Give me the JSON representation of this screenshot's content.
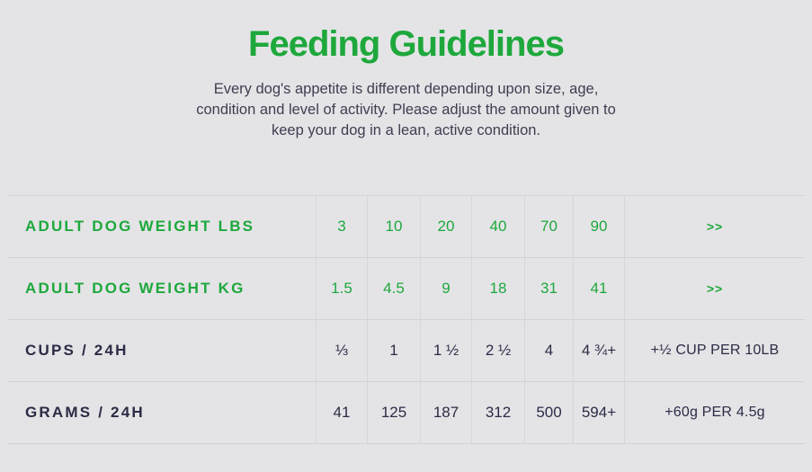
{
  "header": {
    "title": "Feeding Guidelines",
    "description": "Every dog's appetite is different depending upon size, age, condition and level of activity. Please adjust the amount given to keep your dog in a lean, active condition."
  },
  "colors": {
    "background": "#e4e4e7",
    "accent_green": "#1ea83c",
    "text_dark": "#2b2b45",
    "border": "#d1d1d6"
  },
  "table": {
    "rows": [
      {
        "label": "ADULT DOG WEIGHT LBS",
        "values": [
          "3",
          "10",
          "20",
          "40",
          "70",
          "90"
        ],
        "last": ">>"
      },
      {
        "label": "ADULT DOG WEIGHT KG",
        "values": [
          "1.5",
          "4.5",
          "9",
          "18",
          "31",
          "41"
        ],
        "last": ">>"
      },
      {
        "label": "CUPS / 24H",
        "values": [
          "⅓",
          "1",
          "1 ½",
          "2 ½",
          "4",
          "4 ¾+"
        ],
        "last": "+½ CUP PER 10LB"
      },
      {
        "label": "GRAMS / 24H",
        "values": [
          "41",
          "125",
          "187",
          "312",
          "500",
          "594+"
        ],
        "last": "+60g PER 4.5g"
      }
    ]
  }
}
